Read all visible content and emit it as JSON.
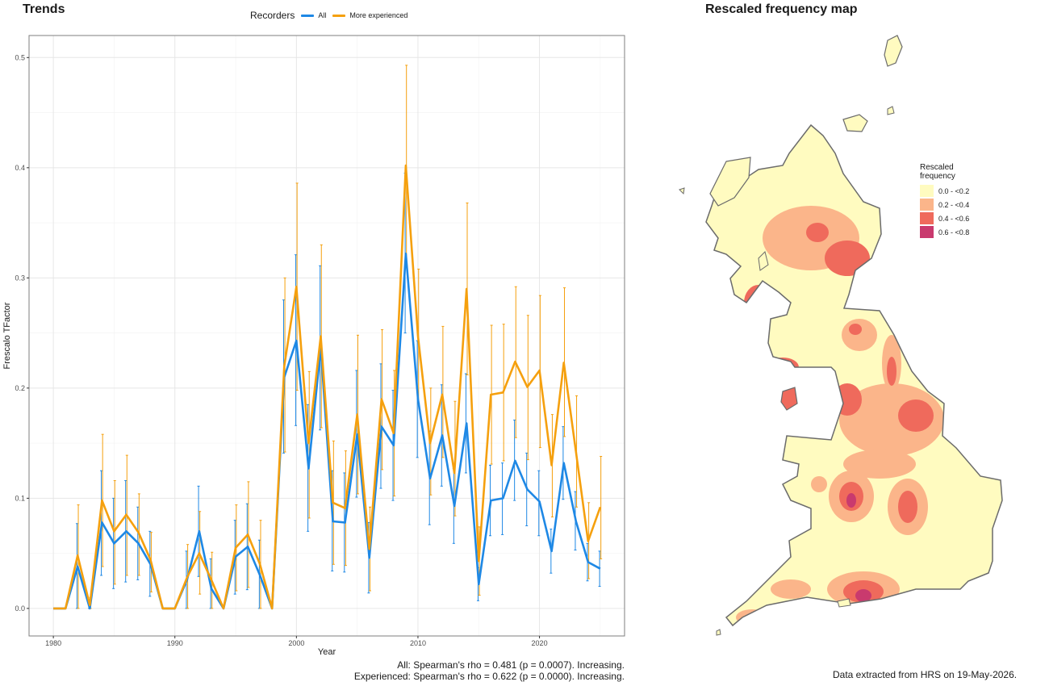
{
  "trends_title": "Trends",
  "map_title": "Rescaled frequency map",
  "legend": {
    "title": "Recorders",
    "items": [
      {
        "label": "All",
        "color": "#1e88e5"
      },
      {
        "label": "More experienced",
        "color": "#f5a00e"
      }
    ]
  },
  "chart_data": {
    "type": "line",
    "xlabel": "Year",
    "ylabel": "Frescalo TFactor",
    "xlim": [
      1978,
      2027
    ],
    "ylim": [
      -0.025,
      0.52
    ],
    "x_ticks": [
      1980,
      1990,
      2000,
      2010,
      2020
    ],
    "y_ticks": [
      0.0,
      0.1,
      0.2,
      0.3,
      0.4,
      0.5
    ],
    "y_tick_labels": [
      "0.0",
      "0.1",
      "0.2",
      "0.3",
      "0.4",
      "0.5"
    ],
    "grid": true,
    "legend_position": "top",
    "series": [
      {
        "name": "All",
        "color": "#1e88e5",
        "points": [
          {
            "x": 1980,
            "y": 0.0
          },
          {
            "x": 1981,
            "y": 0.0
          },
          {
            "x": 1982,
            "y": 0.038,
            "lo": 0.0,
            "hi": 0.077
          },
          {
            "x": 1983,
            "y": 0.0,
            "lo": 0.0,
            "hi": 0.005
          },
          {
            "x": 1984,
            "y": 0.078,
            "lo": 0.03,
            "hi": 0.125
          },
          {
            "x": 1985,
            "y": 0.059,
            "lo": 0.018,
            "hi": 0.1
          },
          {
            "x": 1986,
            "y": 0.07,
            "lo": 0.024,
            "hi": 0.116
          },
          {
            "x": 1987,
            "y": 0.059,
            "lo": 0.026,
            "hi": 0.092
          },
          {
            "x": 1988,
            "y": 0.04,
            "lo": 0.011,
            "hi": 0.07
          },
          {
            "x": 1989,
            "y": 0.0
          },
          {
            "x": 1990,
            "y": 0.0
          },
          {
            "x": 1991,
            "y": 0.026,
            "lo": 0.0,
            "hi": 0.052
          },
          {
            "x": 1992,
            "y": 0.07,
            "lo": 0.029,
            "hi": 0.111
          },
          {
            "x": 1993,
            "y": 0.018,
            "lo": 0.0,
            "hi": 0.045
          },
          {
            "x": 1994,
            "y": 0.0
          },
          {
            "x": 1995,
            "y": 0.047,
            "lo": 0.013,
            "hi": 0.08
          },
          {
            "x": 1996,
            "y": 0.056,
            "lo": 0.017,
            "hi": 0.095
          },
          {
            "x": 1997,
            "y": 0.03,
            "lo": 0.0,
            "hi": 0.062
          },
          {
            "x": 1998,
            "y": 0.0
          },
          {
            "x": 1999,
            "y": 0.21,
            "lo": 0.141,
            "hi": 0.28
          },
          {
            "x": 2000,
            "y": 0.243,
            "lo": 0.166,
            "hi": 0.321
          },
          {
            "x": 2001,
            "y": 0.127,
            "lo": 0.07,
            "hi": 0.185
          },
          {
            "x": 2002,
            "y": 0.237,
            "lo": 0.162,
            "hi": 0.311
          },
          {
            "x": 2003,
            "y": 0.079,
            "lo": 0.034,
            "hi": 0.125
          },
          {
            "x": 2004,
            "y": 0.078,
            "lo": 0.033,
            "hi": 0.123
          },
          {
            "x": 2005,
            "y": 0.158,
            "lo": 0.101,
            "hi": 0.216
          },
          {
            "x": 2006,
            "y": 0.046,
            "lo": 0.014,
            "hi": 0.078
          },
          {
            "x": 2007,
            "y": 0.165,
            "lo": 0.109,
            "hi": 0.222
          },
          {
            "x": 2008,
            "y": 0.148,
            "lo": 0.098,
            "hi": 0.198
          },
          {
            "x": 2009,
            "y": 0.322,
            "lo": 0.25,
            "hi": 0.395
          },
          {
            "x": 2010,
            "y": 0.19,
            "lo": 0.137,
            "hi": 0.243
          },
          {
            "x": 2011,
            "y": 0.118,
            "lo": 0.076,
            "hi": 0.161
          },
          {
            "x": 2012,
            "y": 0.157,
            "lo": 0.111,
            "hi": 0.203
          },
          {
            "x": 2013,
            "y": 0.093,
            "lo": 0.059,
            "hi": 0.127
          },
          {
            "x": 2014,
            "y": 0.168,
            "lo": 0.123,
            "hi": 0.213
          },
          {
            "x": 2015,
            "y": 0.022,
            "lo": 0.007,
            "hi": 0.037
          },
          {
            "x": 2016,
            "y": 0.098,
            "lo": 0.066,
            "hi": 0.13
          },
          {
            "x": 2017,
            "y": 0.1,
            "lo": 0.067,
            "hi": 0.132
          },
          {
            "x": 2018,
            "y": 0.134,
            "lo": 0.098,
            "hi": 0.171
          },
          {
            "x": 2019,
            "y": 0.108,
            "lo": 0.075,
            "hi": 0.141
          },
          {
            "x": 2020,
            "y": 0.097,
            "lo": 0.066,
            "hi": 0.125
          },
          {
            "x": 2021,
            "y": 0.052,
            "lo": 0.032,
            "hi": 0.072
          },
          {
            "x": 2022,
            "y": 0.132,
            "lo": 0.099,
            "hi": 0.165
          },
          {
            "x": 2023,
            "y": 0.079,
            "lo": 0.053,
            "hi": 0.106
          },
          {
            "x": 2024,
            "y": 0.042,
            "lo": 0.025,
            "hi": 0.059
          },
          {
            "x": 2025,
            "y": 0.036,
            "lo": 0.02,
            "hi": 0.052
          }
        ]
      },
      {
        "name": "More experienced",
        "color": "#f5a00e",
        "points": [
          {
            "x": 1980,
            "y": 0.0
          },
          {
            "x": 1981,
            "y": 0.0
          },
          {
            "x": 1982,
            "y": 0.048,
            "lo": 0.0,
            "hi": 0.094
          },
          {
            "x": 1983,
            "y": 0.003,
            "lo": 0.0,
            "hi": 0.01
          },
          {
            "x": 1984,
            "y": 0.098,
            "lo": 0.038,
            "hi": 0.158
          },
          {
            "x": 1985,
            "y": 0.07,
            "lo": 0.022,
            "hi": 0.116
          },
          {
            "x": 1986,
            "y": 0.085,
            "lo": 0.03,
            "hi": 0.139
          },
          {
            "x": 1987,
            "y": 0.069,
            "lo": 0.03,
            "hi": 0.104
          },
          {
            "x": 1988,
            "y": 0.044,
            "lo": 0.015,
            "hi": 0.069
          },
          {
            "x": 1989,
            "y": 0.0
          },
          {
            "x": 1990,
            "y": 0.0
          },
          {
            "x": 1991,
            "y": 0.028,
            "lo": 0.0,
            "hi": 0.058
          },
          {
            "x": 1992,
            "y": 0.05,
            "lo": 0.013,
            "hi": 0.088
          },
          {
            "x": 1993,
            "y": 0.026,
            "lo": 0.0,
            "hi": 0.051
          },
          {
            "x": 1994,
            "y": 0.0
          },
          {
            "x": 1995,
            "y": 0.055,
            "lo": 0.016,
            "hi": 0.094
          },
          {
            "x": 1996,
            "y": 0.067,
            "lo": 0.019,
            "hi": 0.115
          },
          {
            "x": 1997,
            "y": 0.04,
            "lo": 0.0,
            "hi": 0.08
          },
          {
            "x": 1998,
            "y": 0.0
          },
          {
            "x": 1999,
            "y": 0.22,
            "lo": 0.142,
            "hi": 0.3
          },
          {
            "x": 2000,
            "y": 0.292,
            "lo": 0.198,
            "hi": 0.386
          },
          {
            "x": 2001,
            "y": 0.15,
            "lo": 0.082,
            "hi": 0.215
          },
          {
            "x": 2002,
            "y": 0.247,
            "lo": 0.164,
            "hi": 0.33
          },
          {
            "x": 2003,
            "y": 0.096,
            "lo": 0.04,
            "hi": 0.152
          },
          {
            "x": 2004,
            "y": 0.091,
            "lo": 0.039,
            "hi": 0.143
          },
          {
            "x": 2005,
            "y": 0.176,
            "lo": 0.104,
            "hi": 0.248
          },
          {
            "x": 2006,
            "y": 0.054,
            "lo": 0.016,
            "hi": 0.092
          },
          {
            "x": 2007,
            "y": 0.19,
            "lo": 0.126,
            "hi": 0.253
          },
          {
            "x": 2008,
            "y": 0.159,
            "lo": 0.102,
            "hi": 0.216
          },
          {
            "x": 2009,
            "y": 0.402,
            "lo": 0.311,
            "hi": 0.493
          },
          {
            "x": 2010,
            "y": 0.247,
            "lo": 0.186,
            "hi": 0.308
          },
          {
            "x": 2011,
            "y": 0.15,
            "lo": 0.103,
            "hi": 0.2
          },
          {
            "x": 2012,
            "y": 0.194,
            "lo": 0.137,
            "hi": 0.256
          },
          {
            "x": 2013,
            "y": 0.123,
            "lo": 0.084,
            "hi": 0.188
          },
          {
            "x": 2014,
            "y": 0.29,
            "lo": 0.212,
            "hi": 0.368
          },
          {
            "x": 2015,
            "y": 0.043,
            "lo": 0.012,
            "hi": 0.074
          },
          {
            "x": 2016,
            "y": 0.194,
            "lo": 0.131,
            "hi": 0.257
          },
          {
            "x": 2017,
            "y": 0.196,
            "lo": 0.134,
            "hi": 0.258
          },
          {
            "x": 2018,
            "y": 0.224,
            "lo": 0.155,
            "hi": 0.292
          },
          {
            "x": 2019,
            "y": 0.201,
            "lo": 0.135,
            "hi": 0.266
          },
          {
            "x": 2020,
            "y": 0.216,
            "lo": 0.146,
            "hi": 0.284
          },
          {
            "x": 2021,
            "y": 0.13,
            "lo": 0.083,
            "hi": 0.176
          },
          {
            "x": 2022,
            "y": 0.223,
            "lo": 0.156,
            "hi": 0.291
          },
          {
            "x": 2023,
            "y": 0.142,
            "lo": 0.092,
            "hi": 0.193
          },
          {
            "x": 2024,
            "y": 0.061,
            "lo": 0.027,
            "hi": 0.096
          },
          {
            "x": 2025,
            "y": 0.092,
            "lo": 0.045,
            "hi": 0.138
          }
        ]
      }
    ]
  },
  "stats_notes": [
    "All: Spearman's rho = 0.481 (p = 0.0007). Increasing.",
    "Experienced: Spearman's rho = 0.622 (p = 0.0000). Increasing."
  ],
  "data_note": "Data extracted from HRS on 19-May-2026.",
  "map_legend": {
    "title_line1": "Rescaled",
    "title_line2": "frequency",
    "classes": [
      {
        "label": "0.0 - <0.2",
        "color": "#fffbc0"
      },
      {
        "label": "0.2 - <0.4",
        "color": "#fbb58a"
      },
      {
        "label": "0.4 - <0.6",
        "color": "#ef6a5c"
      },
      {
        "label": "0.6 - <0.8",
        "color": "#c93a6e"
      }
    ]
  }
}
